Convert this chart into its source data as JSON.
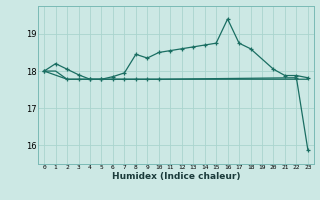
{
  "title": "",
  "xlabel": "Humidex (Indice chaleur)",
  "bg_color": "#cce8e4",
  "grid_color": "#aad4ce",
  "line_color": "#1a6e62",
  "xlim": [
    -0.5,
    23.5
  ],
  "ylim": [
    15.5,
    19.75
  ],
  "yticks": [
    16,
    17,
    18,
    19
  ],
  "xticks": [
    0,
    1,
    2,
    3,
    4,
    5,
    6,
    7,
    8,
    9,
    10,
    11,
    12,
    13,
    14,
    15,
    16,
    17,
    18,
    19,
    20,
    21,
    22,
    23
  ],
  "xtick_labels": [
    "0",
    "1",
    "2",
    "3",
    "4",
    "5",
    "6",
    "7",
    "8",
    "9",
    "10",
    "11",
    "12",
    "13",
    "14",
    "15",
    "16",
    "17",
    "18",
    "19",
    "20",
    "21",
    "22",
    "23"
  ],
  "line1_x": [
    0,
    1,
    2,
    3,
    4,
    5,
    6,
    7,
    8,
    9,
    10,
    11,
    12,
    13,
    14,
    15,
    16,
    17,
    18,
    20,
    21,
    22,
    23
  ],
  "line1_y": [
    18.0,
    18.2,
    18.05,
    17.9,
    17.78,
    17.78,
    17.85,
    17.95,
    18.45,
    18.35,
    18.5,
    18.55,
    18.6,
    18.65,
    18.7,
    18.75,
    19.4,
    18.75,
    18.6,
    18.05,
    17.88,
    17.88,
    17.82
  ],
  "line2_x": [
    0,
    2,
    3,
    4,
    5,
    6,
    7,
    8,
    9,
    10,
    22,
    23
  ],
  "line2_y": [
    18.0,
    17.78,
    17.78,
    17.78,
    17.78,
    17.78,
    17.78,
    17.78,
    17.78,
    17.78,
    17.82,
    15.88
  ],
  "line3_x": [
    0,
    1,
    2,
    3,
    4,
    5,
    6,
    7,
    8,
    9,
    10,
    11,
    12,
    13,
    14,
    15,
    16,
    17,
    18,
    19,
    20,
    21,
    22,
    23
  ],
  "line3_y": [
    18.0,
    18.0,
    17.78,
    17.78,
    17.78,
    17.78,
    17.78,
    17.78,
    17.78,
    17.78,
    17.78,
    17.78,
    17.78,
    17.78,
    17.78,
    17.78,
    17.78,
    17.78,
    17.78,
    17.78,
    17.78,
    17.78,
    17.78,
    17.78
  ]
}
